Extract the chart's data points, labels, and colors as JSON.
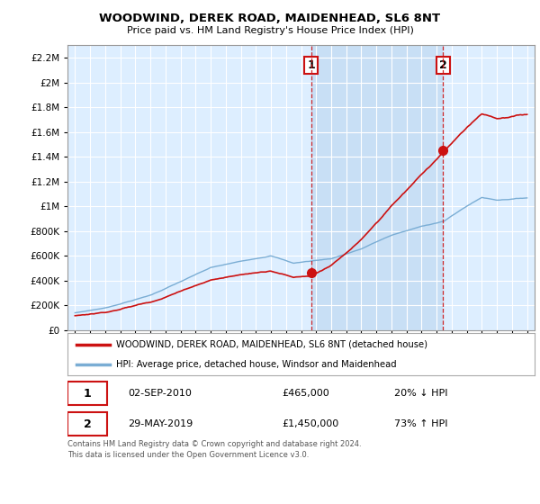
{
  "title": "WOODWIND, DEREK ROAD, MAIDENHEAD, SL6 8NT",
  "subtitle": "Price paid vs. HM Land Registry's House Price Index (HPI)",
  "legend_line1": "WOODWIND, DEREK ROAD, MAIDENHEAD, SL6 8NT (detached house)",
  "legend_line2": "HPI: Average price, detached house, Windsor and Maidenhead",
  "annotation1_label": "1",
  "annotation1_date": "02-SEP-2010",
  "annotation1_price": "£465,000",
  "annotation1_hpi": "20% ↓ HPI",
  "annotation2_label": "2",
  "annotation2_date": "29-MAY-2019",
  "annotation2_price": "£1,450,000",
  "annotation2_hpi": "73% ↑ HPI",
  "footer": "Contains HM Land Registry data © Crown copyright and database right 2024.\nThis data is licensed under the Open Government Licence v3.0.",
  "sale1_x": 2010.67,
  "sale1_y": 465000,
  "sale2_x": 2019.41,
  "sale2_y": 1450000,
  "hpi_color": "#7aadd4",
  "price_color": "#cc1111",
  "vline_color": "#cc1111",
  "dot_color": "#cc1111",
  "background_color": "#ffffff",
  "plot_bg_color": "#ddeeff",
  "shade_bg_color": "#c8dff5",
  "grid_color": "#ffffff",
  "ylim": [
    0,
    2300000
  ],
  "xlim": [
    1994.5,
    2025.5
  ],
  "yticks": [
    0,
    200000,
    400000,
    600000,
    800000,
    1000000,
    1200000,
    1400000,
    1600000,
    1800000,
    2000000,
    2200000
  ],
  "ytick_labels": [
    "£0",
    "£200K",
    "£400K",
    "£600K",
    "£800K",
    "£1M",
    "£1.2M",
    "£1.4M",
    "£1.6M",
    "£1.8M",
    "£2M",
    "£2.2M"
  ],
  "xticks": [
    1995,
    1996,
    1997,
    1998,
    1999,
    2000,
    2001,
    2002,
    2003,
    2004,
    2005,
    2006,
    2007,
    2008,
    2009,
    2010,
    2011,
    2012,
    2013,
    2014,
    2015,
    2016,
    2017,
    2018,
    2019,
    2020,
    2021,
    2022,
    2023,
    2024,
    2025
  ]
}
